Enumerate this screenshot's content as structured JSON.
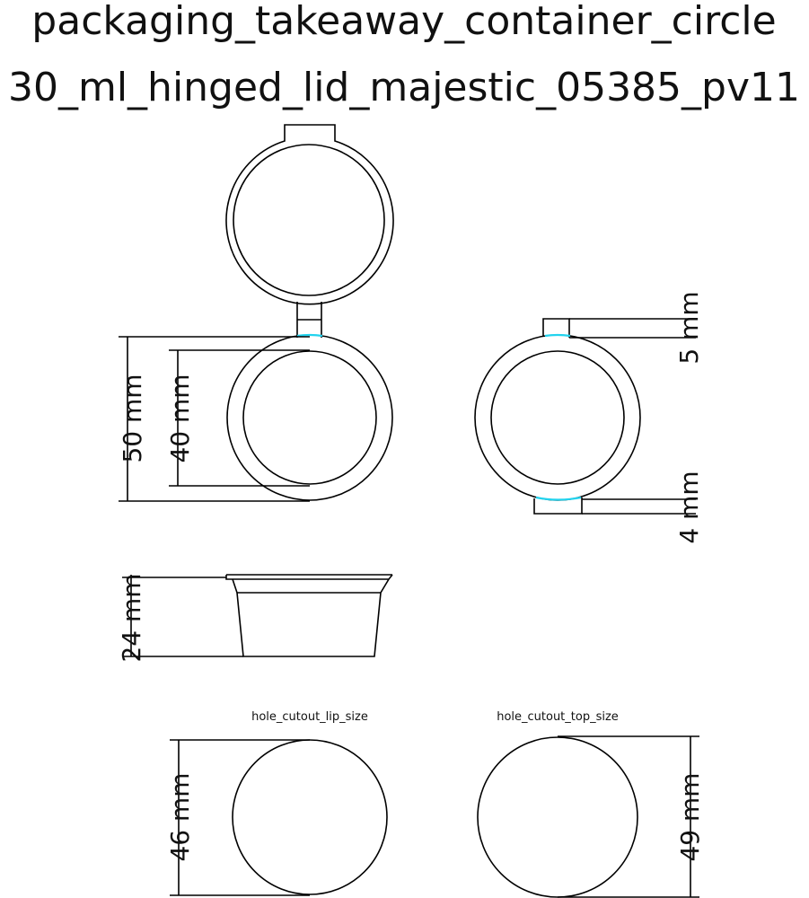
{
  "title": {
    "line1": "packaging_takeaway_container_circle",
    "line2": "30_ml_hinged_lid_majestic_05385_pv11"
  },
  "dimensions": {
    "outer_diameter": "50 mm",
    "inner_diameter": "40 mm",
    "top_hinge": "5 mm",
    "bottom_hinge": "4 mm",
    "height": "24 mm",
    "hole_lip": "46 mm",
    "hole_top": "49 mm"
  },
  "labels": {
    "hole_lip": "hole_cutout_lip_size",
    "hole_top": "hole_cutout_top_size"
  },
  "colors": {
    "stroke": "#000000",
    "highlight": "#22d3ee"
  }
}
